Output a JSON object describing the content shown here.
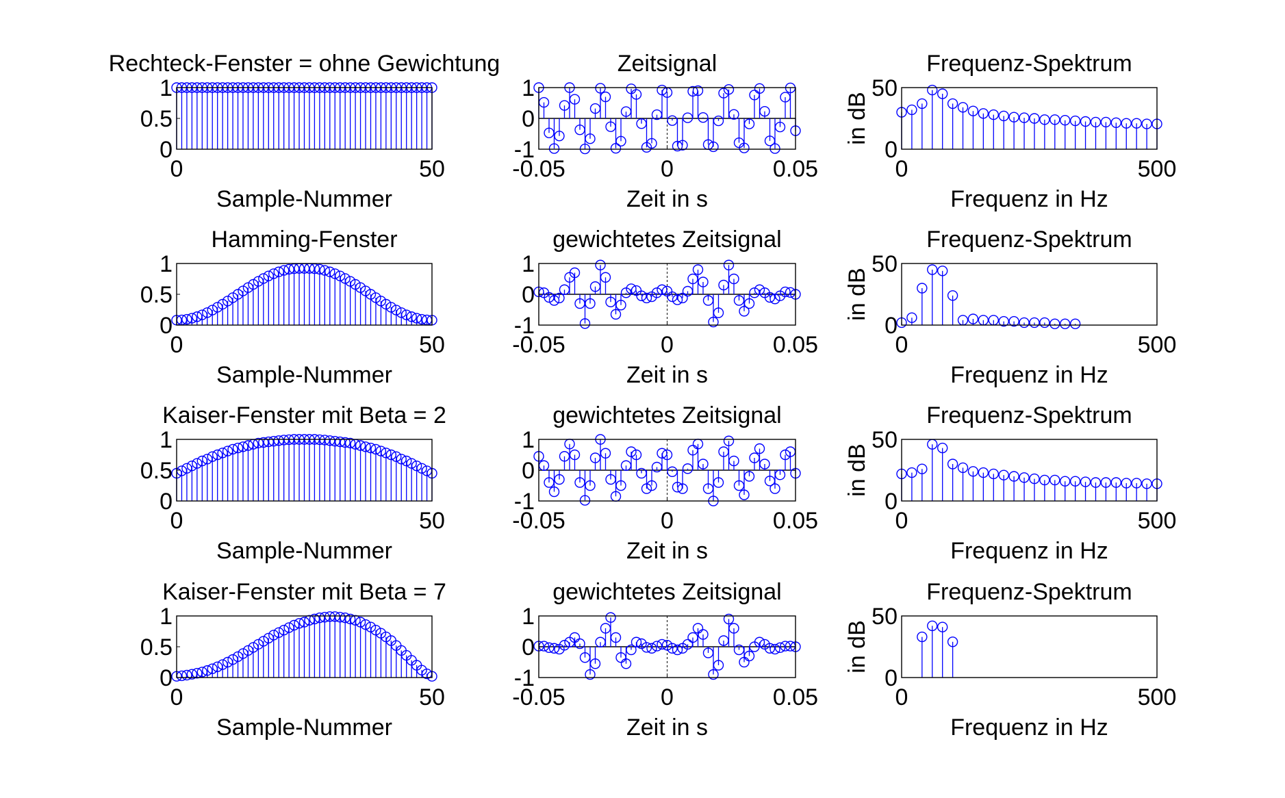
{
  "figure": {
    "background": "#ffffff",
    "stem_color": "#0000ff",
    "axis_color": "#000000"
  },
  "chart_data": [
    {
      "type": "stem",
      "row": 0,
      "col": 0,
      "title": "Rechteck-Fenster = ohne Gewichtung",
      "xlabel": "Sample-Nummer",
      "ylabel": "",
      "xlim": [
        0,
        50
      ],
      "ylim": [
        0,
        1
      ],
      "xticks": [
        0,
        50
      ],
      "xtick_labels": [
        "0",
        "50"
      ],
      "yticks": [
        0,
        0.5,
        1
      ],
      "ytick_labels": [
        "0",
        "0.5",
        "1"
      ],
      "x": [
        0,
        1,
        2,
        3,
        4,
        5,
        6,
        7,
        8,
        9,
        10,
        11,
        12,
        13,
        14,
        15,
        16,
        17,
        18,
        19,
        20,
        21,
        22,
        23,
        24,
        25,
        26,
        27,
        28,
        29,
        30,
        31,
        32,
        33,
        34,
        35,
        36,
        37,
        38,
        39,
        40,
        41,
        42,
        43,
        44,
        45,
        46,
        47,
        48,
        49,
        50
      ],
      "y": [
        1,
        1,
        1,
        1,
        1,
        1,
        1,
        1,
        1,
        1,
        1,
        1,
        1,
        1,
        1,
        1,
        1,
        1,
        1,
        1,
        1,
        1,
        1,
        1,
        1,
        1,
        1,
        1,
        1,
        1,
        1,
        1,
        1,
        1,
        1,
        1,
        1,
        1,
        1,
        1,
        1,
        1,
        1,
        1,
        1,
        1,
        1,
        1,
        1,
        1,
        1
      ]
    },
    {
      "type": "stem",
      "row": 0,
      "col": 1,
      "title": "Zeitsignal",
      "xlabel": "Zeit in s",
      "ylabel": "",
      "xlim": [
        -0.05,
        0.05
      ],
      "ylim": [
        -1,
        1
      ],
      "xticks": [
        -0.05,
        0,
        0.05
      ],
      "xtick_labels": [
        "-0.05",
        "0",
        "0.05"
      ],
      "yticks": [
        -1,
        0,
        1
      ],
      "ytick_labels": [
        "-1",
        "0",
        "1"
      ],
      "x": [
        -0.05,
        -0.048,
        -0.046,
        -0.044,
        -0.042,
        -0.04,
        -0.038,
        -0.036,
        -0.034,
        -0.032,
        -0.03,
        -0.028,
        -0.026,
        -0.024,
        -0.022,
        -0.02,
        -0.018,
        -0.016,
        -0.014,
        -0.012,
        -0.01,
        -0.008,
        -0.006,
        -0.004,
        -0.002,
        0,
        0.002,
        0.004,
        0.006,
        0.008,
        0.01,
        0.012,
        0.014,
        0.016,
        0.018,
        0.02,
        0.022,
        0.024,
        0.026,
        0.028,
        0.03,
        0.032,
        0.034,
        0.036,
        0.038,
        0.04,
        0.042,
        0.044,
        0.046,
        0.048,
        0.05
      ],
      "y": [
        1,
        0.52,
        -0.47,
        -0.98,
        -0.57,
        0.42,
        1,
        0.62,
        -0.37,
        -0.99,
        -0.66,
        0.32,
        0.98,
        0.7,
        -0.27,
        -0.97,
        -0.74,
        0.22,
        0.96,
        0.78,
        -0.17,
        -0.94,
        -0.81,
        0.12,
        0.92,
        0.84,
        -0.07,
        -0.9,
        -0.87,
        0.02,
        0.88,
        0.9,
        0.03,
        -0.85,
        -0.92,
        -0.08,
        0.82,
        0.94,
        0.13,
        -0.79,
        -0.96,
        -0.18,
        0.76,
        0.97,
        0.23,
        -0.73,
        -0.98,
        -0.28,
        0.69,
        0.99,
        -0.4
      ]
    },
    {
      "type": "stem",
      "row": 0,
      "col": 2,
      "title": "Frequenz-Spektrum",
      "xlabel": "Frequenz in Hz",
      "ylabel": "in dB",
      "xlim": [
        0,
        500
      ],
      "ylim": [
        0,
        50
      ],
      "xticks": [
        0,
        500
      ],
      "xtick_labels": [
        "0",
        "500"
      ],
      "yticks": [
        0,
        50
      ],
      "ytick_labels": [
        "0",
        "50"
      ],
      "x": [
        0,
        20,
        40,
        60,
        80,
        100,
        120,
        140,
        160,
        180,
        200,
        220,
        240,
        260,
        280,
        300,
        320,
        340,
        360,
        380,
        400,
        420,
        440,
        460,
        480,
        500
      ],
      "y": [
        30,
        32,
        37,
        48,
        45,
        37,
        34,
        31,
        29,
        28,
        27,
        26,
        25.5,
        25,
        24,
        24,
        23.5,
        23,
        22.5,
        22,
        22,
        21.5,
        21,
        21,
        20.5,
        20.5
      ]
    },
    {
      "type": "stem",
      "row": 1,
      "col": 0,
      "title": "Hamming-Fenster",
      "xlabel": "Sample-Nummer",
      "ylabel": "",
      "xlim": [
        0,
        50
      ],
      "ylim": [
        0,
        1
      ],
      "xticks": [
        0,
        50
      ],
      "xtick_labels": [
        "0",
        "50"
      ],
      "yticks": [
        0,
        0.5,
        1
      ],
      "ytick_labels": [
        "0",
        "0.5",
        "1"
      ],
      "x": [
        0,
        1,
        2,
        3,
        4,
        5,
        6,
        7,
        8,
        9,
        10,
        11,
        12,
        13,
        14,
        15,
        16,
        17,
        18,
        19,
        20,
        21,
        22,
        23,
        24,
        25,
        26,
        27,
        28,
        29,
        30,
        31,
        32,
        33,
        34,
        35,
        36,
        37,
        38,
        39,
        40,
        41,
        42,
        43,
        44,
        45,
        46,
        47,
        48,
        49,
        50
      ],
      "y": [
        0.08,
        0.084,
        0.094,
        0.112,
        0.136,
        0.166,
        0.202,
        0.244,
        0.29,
        0.339,
        0.391,
        0.445,
        0.5,
        0.555,
        0.609,
        0.661,
        0.71,
        0.756,
        0.798,
        0.834,
        0.864,
        0.888,
        0.906,
        0.916,
        0.92,
        0.92,
        0.92,
        0.916,
        0.906,
        0.888,
        0.864,
        0.834,
        0.798,
        0.756,
        0.71,
        0.661,
        0.609,
        0.555,
        0.5,
        0.445,
        0.391,
        0.339,
        0.29,
        0.244,
        0.202,
        0.166,
        0.136,
        0.112,
        0.094,
        0.084,
        0.08
      ]
    },
    {
      "type": "stem",
      "row": 1,
      "col": 1,
      "title": "gewichtetes Zeitsignal",
      "xlabel": "Zeit in s",
      "ylabel": "",
      "xlim": [
        -0.05,
        0.05
      ],
      "ylim": [
        -1,
        1
      ],
      "xticks": [
        -0.05,
        0,
        0.05
      ],
      "xtick_labels": [
        "-0.05",
        "0",
        "0.05"
      ],
      "yticks": [
        -1,
        0,
        1
      ],
      "ytick_labels": [
        "-1",
        "0",
        "1"
      ],
      "x": [
        -0.05,
        -0.048,
        -0.046,
        -0.044,
        -0.042,
        -0.04,
        -0.038,
        -0.036,
        -0.034,
        -0.032,
        -0.03,
        -0.028,
        -0.026,
        -0.024,
        -0.022,
        -0.02,
        -0.018,
        -0.016,
        -0.014,
        -0.012,
        -0.01,
        -0.008,
        -0.006,
        -0.004,
        -0.002,
        0,
        0.002,
        0.004,
        0.006,
        0.008,
        0.01,
        0.012,
        0.014,
        0.016,
        0.018,
        0.02,
        0.022,
        0.024,
        0.026,
        0.028,
        0.03,
        0.032,
        0.034,
        0.036,
        0.038,
        0.04,
        0.042,
        0.044,
        0.046,
        0.048,
        0.05
      ],
      "y": [
        0.08,
        0.05,
        -0.1,
        -0.2,
        -0.12,
        0.15,
        0.55,
        0.7,
        -0.3,
        -0.95,
        -0.3,
        0.25,
        0.95,
        0.55,
        -0.25,
        -0.65,
        -0.35,
        0.05,
        0.18,
        0.12,
        -0.05,
        -0.12,
        -0.08,
        0.05,
        0.15,
        0.1,
        -0.08,
        -0.18,
        -0.12,
        0.1,
        0.5,
        0.8,
        0.4,
        -0.2,
        -0.9,
        -0.6,
        0.3,
        0.95,
        0.5,
        -0.2,
        -0.55,
        -0.3,
        0.05,
        0.15,
        0.05,
        -0.1,
        -0.15,
        -0.05,
        0.08,
        0.06,
        0.0
      ]
    },
    {
      "type": "stem",
      "row": 1,
      "col": 2,
      "title": "Frequenz-Spektrum",
      "xlabel": "Frequenz in Hz",
      "ylabel": "in dB",
      "xlim": [
        0,
        500
      ],
      "ylim": [
        0,
        50
      ],
      "xticks": [
        0,
        500
      ],
      "xtick_labels": [
        "0",
        "500"
      ],
      "yticks": [
        0,
        50
      ],
      "ytick_labels": [
        "0",
        "50"
      ],
      "x": [
        0,
        20,
        40,
        60,
        80,
        100,
        120,
        140,
        160,
        180,
        200,
        220,
        240,
        260,
        280,
        300,
        320,
        340
      ],
      "y": [
        2,
        6,
        30,
        45,
        44,
        24,
        4,
        5,
        4,
        4,
        3,
        3,
        2,
        2,
        2,
        1,
        1,
        1
      ]
    },
    {
      "type": "stem",
      "row": 2,
      "col": 0,
      "title": "Kaiser-Fenster mit Beta = 2",
      "xlabel": "Sample-Nummer",
      "ylabel": "",
      "xlim": [
        0,
        50
      ],
      "ylim": [
        0,
        1
      ],
      "xticks": [
        0,
        50
      ],
      "xtick_labels": [
        "0",
        "50"
      ],
      "yticks": [
        0,
        0.5,
        1
      ],
      "ytick_labels": [
        "0",
        "0.5",
        "1"
      ],
      "x": [
        0,
        1,
        2,
        3,
        4,
        5,
        6,
        7,
        8,
        9,
        10,
        11,
        12,
        13,
        14,
        15,
        16,
        17,
        18,
        19,
        20,
        21,
        22,
        23,
        24,
        25,
        26,
        27,
        28,
        29,
        30,
        31,
        32,
        33,
        34,
        35,
        36,
        37,
        38,
        39,
        40,
        41,
        42,
        43,
        44,
        45,
        46,
        47,
        48,
        49,
        50
      ],
      "y": [
        0.45,
        0.49,
        0.53,
        0.57,
        0.61,
        0.65,
        0.68,
        0.72,
        0.75,
        0.78,
        0.81,
        0.84,
        0.86,
        0.88,
        0.9,
        0.92,
        0.94,
        0.95,
        0.96,
        0.97,
        0.98,
        0.99,
        0.995,
        1,
        1,
        1,
        1,
        1,
        0.995,
        0.99,
        0.98,
        0.97,
        0.96,
        0.95,
        0.94,
        0.92,
        0.9,
        0.88,
        0.86,
        0.84,
        0.81,
        0.78,
        0.75,
        0.72,
        0.68,
        0.65,
        0.61,
        0.57,
        0.53,
        0.49,
        0.45
      ]
    },
    {
      "type": "stem",
      "row": 2,
      "col": 1,
      "title": "gewichtetes Zeitsignal",
      "xlabel": "Zeit in s",
      "ylabel": "",
      "xlim": [
        -0.05,
        0.05
      ],
      "ylim": [
        -1,
        1
      ],
      "xticks": [
        -0.05,
        0,
        0.05
      ],
      "xtick_labels": [
        "-0.05",
        "0",
        "0.05"
      ],
      "yticks": [
        -1,
        0,
        1
      ],
      "ytick_labels": [
        "-1",
        "0",
        "1"
      ],
      "x": [
        -0.05,
        -0.048,
        -0.046,
        -0.044,
        -0.042,
        -0.04,
        -0.038,
        -0.036,
        -0.034,
        -0.032,
        -0.03,
        -0.028,
        -0.026,
        -0.024,
        -0.022,
        -0.02,
        -0.018,
        -0.016,
        -0.014,
        -0.012,
        -0.01,
        -0.008,
        -0.006,
        -0.004,
        -0.002,
        0,
        0.002,
        0.004,
        0.006,
        0.008,
        0.01,
        0.012,
        0.014,
        0.016,
        0.018,
        0.02,
        0.022,
        0.024,
        0.026,
        0.028,
        0.03,
        0.032,
        0.034,
        0.036,
        0.038,
        0.04,
        0.042,
        0.044,
        0.046,
        0.048,
        0.05
      ],
      "y": [
        0.45,
        0.15,
        -0.4,
        -0.7,
        -0.3,
        0.45,
        0.85,
        0.5,
        -0.4,
        -0.98,
        -0.5,
        0.4,
        1,
        0.55,
        -0.3,
        -0.85,
        -0.5,
        0.15,
        0.6,
        0.5,
        -0.1,
        -0.6,
        -0.5,
        0.1,
        0.55,
        0.5,
        -0.05,
        -0.55,
        -0.6,
        0.05,
        0.65,
        0.85,
        0.2,
        -0.6,
        -1,
        -0.4,
        0.6,
        0.95,
        0.3,
        -0.5,
        -0.8,
        -0.2,
        0.4,
        0.7,
        0.2,
        -0.35,
        -0.6,
        -0.15,
        0.5,
        0.6,
        -0.1
      ]
    },
    {
      "type": "stem",
      "row": 2,
      "col": 2,
      "title": "Frequenz-Spektrum",
      "xlabel": "Frequenz in Hz",
      "ylabel": "in dB",
      "xlim": [
        0,
        500
      ],
      "ylim": [
        0,
        50
      ],
      "xticks": [
        0,
        500
      ],
      "xtick_labels": [
        "0",
        "500"
      ],
      "yticks": [
        0,
        50
      ],
      "ytick_labels": [
        "0",
        "50"
      ],
      "x": [
        0,
        20,
        40,
        60,
        80,
        100,
        120,
        140,
        160,
        180,
        200,
        220,
        240,
        260,
        280,
        300,
        320,
        340,
        360,
        380,
        400,
        420,
        440,
        460,
        480,
        500
      ],
      "y": [
        22,
        23,
        26,
        46,
        43,
        30,
        27,
        24,
        23,
        22,
        21,
        20,
        19,
        18,
        17,
        17,
        16,
        16,
        15.5,
        15,
        15,
        15,
        14.5,
        14.5,
        14,
        14
      ]
    },
    {
      "type": "stem",
      "row": 3,
      "col": 0,
      "title": "Kaiser-Fenster mit Beta = 7",
      "xlabel": "Sample-Nummer",
      "ylabel": "",
      "xlim": [
        0,
        50
      ],
      "ylim": [
        0,
        1
      ],
      "xticks": [
        0,
        50
      ],
      "xtick_labels": [
        "0",
        "50"
      ],
      "yticks": [
        0,
        0.5,
        1
      ],
      "ytick_labels": [
        "0",
        "0.5",
        "1"
      ],
      "x": [
        0,
        1,
        2,
        3,
        4,
        5,
        6,
        7,
        8,
        9,
        10,
        11,
        12,
        13,
        14,
        15,
        16,
        17,
        18,
        19,
        20,
        21,
        22,
        23,
        24,
        25,
        26,
        27,
        28,
        29,
        30,
        31,
        32,
        33,
        34,
        35,
        36,
        37,
        38,
        39,
        40,
        41,
        42,
        43,
        44,
        45,
        46,
        47,
        48,
        49,
        50
      ],
      "y": [
        0.02,
        0.028,
        0.039,
        0.053,
        0.07,
        0.09,
        0.114,
        0.142,
        0.174,
        0.21,
        0.25,
        0.293,
        0.34,
        0.39,
        0.44,
        0.49,
        0.54,
        0.59,
        0.64,
        0.69,
        0.73,
        0.77,
        0.81,
        0.85,
        0.88,
        0.9,
        0.93,
        0.95,
        0.97,
        0.98,
        0.99,
        0.99,
        0.98,
        0.97,
        0.95,
        0.93,
        0.9,
        0.86,
        0.82,
        0.77,
        0.72,
        0.66,
        0.6,
        0.52,
        0.44,
        0.36,
        0.28,
        0.2,
        0.12,
        0.06,
        0.02
      ]
    },
    {
      "type": "stem",
      "row": 3,
      "col": 1,
      "title": "gewichtetes Zeitsignal",
      "xlabel": "Zeit in s",
      "ylabel": "",
      "xlim": [
        -0.05,
        0.05
      ],
      "ylim": [
        -1,
        1
      ],
      "xticks": [
        -0.05,
        0,
        0.05
      ],
      "xtick_labels": [
        "-0.05",
        "0",
        "0.05"
      ],
      "yticks": [
        -1,
        0,
        1
      ],
      "ytick_labels": [
        "-1",
        "0",
        "1"
      ],
      "x": [
        -0.05,
        -0.048,
        -0.046,
        -0.044,
        -0.042,
        -0.04,
        -0.038,
        -0.036,
        -0.034,
        -0.032,
        -0.03,
        -0.028,
        -0.026,
        -0.024,
        -0.022,
        -0.02,
        -0.018,
        -0.016,
        -0.014,
        -0.012,
        -0.01,
        -0.008,
        -0.006,
        -0.004,
        -0.002,
        0,
        0.002,
        0.004,
        0.006,
        0.008,
        0.01,
        0.012,
        0.014,
        0.016,
        0.018,
        0.02,
        0.022,
        0.024,
        0.026,
        0.028,
        0.03,
        0.032,
        0.034,
        0.036,
        0.038,
        0.04,
        0.042,
        0.044,
        0.046,
        0.048,
        0.05
      ],
      "y": [
        0.02,
        0.02,
        -0.03,
        -0.05,
        -0.08,
        0.05,
        0.15,
        0.3,
        0.1,
        -0.35,
        -0.9,
        -0.55,
        0.15,
        0.6,
        0.95,
        0.3,
        -0.35,
        -0.55,
        -0.1,
        0.15,
        0.1,
        -0.02,
        -0.05,
        0.02,
        0.08,
        0.05,
        -0.05,
        -0.1,
        -0.05,
        0.08,
        0.3,
        0.6,
        0.4,
        -0.2,
        -0.9,
        -0.6,
        0.2,
        0.9,
        0.6,
        -0.1,
        -0.5,
        -0.3,
        0.0,
        0.15,
        0.08,
        -0.05,
        -0.08,
        -0.03,
        0.02,
        0.02,
        0.0
      ]
    },
    {
      "type": "stem",
      "row": 3,
      "col": 2,
      "title": "Frequenz-Spektrum",
      "xlabel": "Frequenz in Hz",
      "ylabel": "in dB",
      "xlim": [
        0,
        500
      ],
      "ylim": [
        0,
        50
      ],
      "xticks": [
        0,
        500
      ],
      "xtick_labels": [
        "0",
        "500"
      ],
      "yticks": [
        0,
        50
      ],
      "ytick_labels": [
        "0",
        "50"
      ],
      "x": [
        40,
        60,
        80,
        100
      ],
      "y": [
        33,
        42,
        41,
        29
      ]
    }
  ]
}
